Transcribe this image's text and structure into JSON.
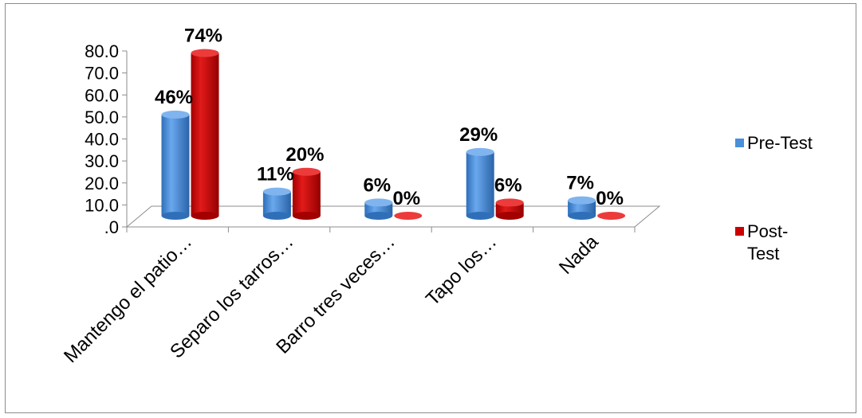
{
  "chart_data": {
    "type": "bar",
    "style": "3d-cylinder",
    "categories": [
      "Mantengo el patio…",
      "Separo los tarros…",
      "Barro  tres veces…",
      "Tapo los…",
      "Nada"
    ],
    "series": [
      {
        "name": "Pre-Test",
        "values": [
          46,
          11,
          6,
          29,
          7
        ],
        "labels": [
          "46%",
          "11%",
          "6%",
          "29%",
          "7%"
        ],
        "color": "#4a8fd9"
      },
      {
        "name": "Post-Test",
        "values": [
          74,
          20,
          0,
          6,
          0
        ],
        "labels": [
          "74%",
          "20%",
          "0%",
          "6%",
          "0%"
        ],
        "color": "#cc0000"
      }
    ],
    "y_ticks": [
      ".0",
      "10.0",
      "20.0",
      "30.0",
      "40.0",
      "50.0",
      "60.0",
      "70.0",
      "80.0"
    ],
    "ylim": [
      0,
      80
    ],
    "legend": {
      "position": "right",
      "items": [
        "Pre-Test",
        "Post-Test"
      ]
    },
    "grid": false
  }
}
